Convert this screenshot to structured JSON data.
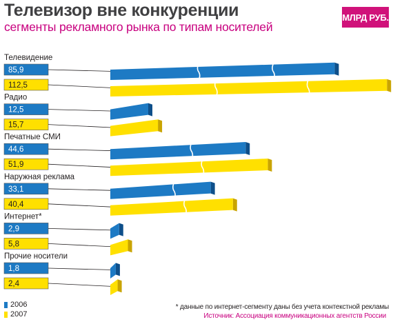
{
  "header": {
    "title": "Телевизор вне конкуренции",
    "subtitle": "сегменты рекламного рынка по типам носителей",
    "unit": "МЛРД РУБ."
  },
  "colors": {
    "series_2006": "#1d7ac4",
    "series_2007": "#ffe000",
    "accent": "#d0127a"
  },
  "chart_data": {
    "type": "bar",
    "orientation": "horizontal",
    "unit": "МЛРД РУБ.",
    "categories": [
      "Телевидение",
      "Радио",
      "Печатные СМИ",
      "Наружная реклама",
      "Интернет*",
      "Прочие носители"
    ],
    "series": [
      {
        "name": "2006",
        "values": [
          85.9,
          12.5,
          44.6,
          33.1,
          2.9,
          1.8
        ]
      },
      {
        "name": "2007",
        "values": [
          112.5,
          15.7,
          51.9,
          40.4,
          5.8,
          2.4
        ]
      }
    ],
    "value_labels": [
      [
        "85,9",
        "112,5"
      ],
      [
        "12,5",
        "15,7"
      ],
      [
        "44,6",
        "51,9"
      ],
      [
        "33,1",
        "40,4"
      ],
      [
        "2,9",
        "5,8"
      ],
      [
        "1,8",
        "2,4"
      ]
    ],
    "legend": [
      "2006",
      "2007"
    ],
    "legend_position": "bottom-left",
    "scale_breaks": true,
    "grid": false
  },
  "footer": {
    "footnote": "* данные по интернет-сегменту даны без учета контекстной рекламы",
    "source": "Источник: Ассоциация коммуникационных агентств России"
  }
}
